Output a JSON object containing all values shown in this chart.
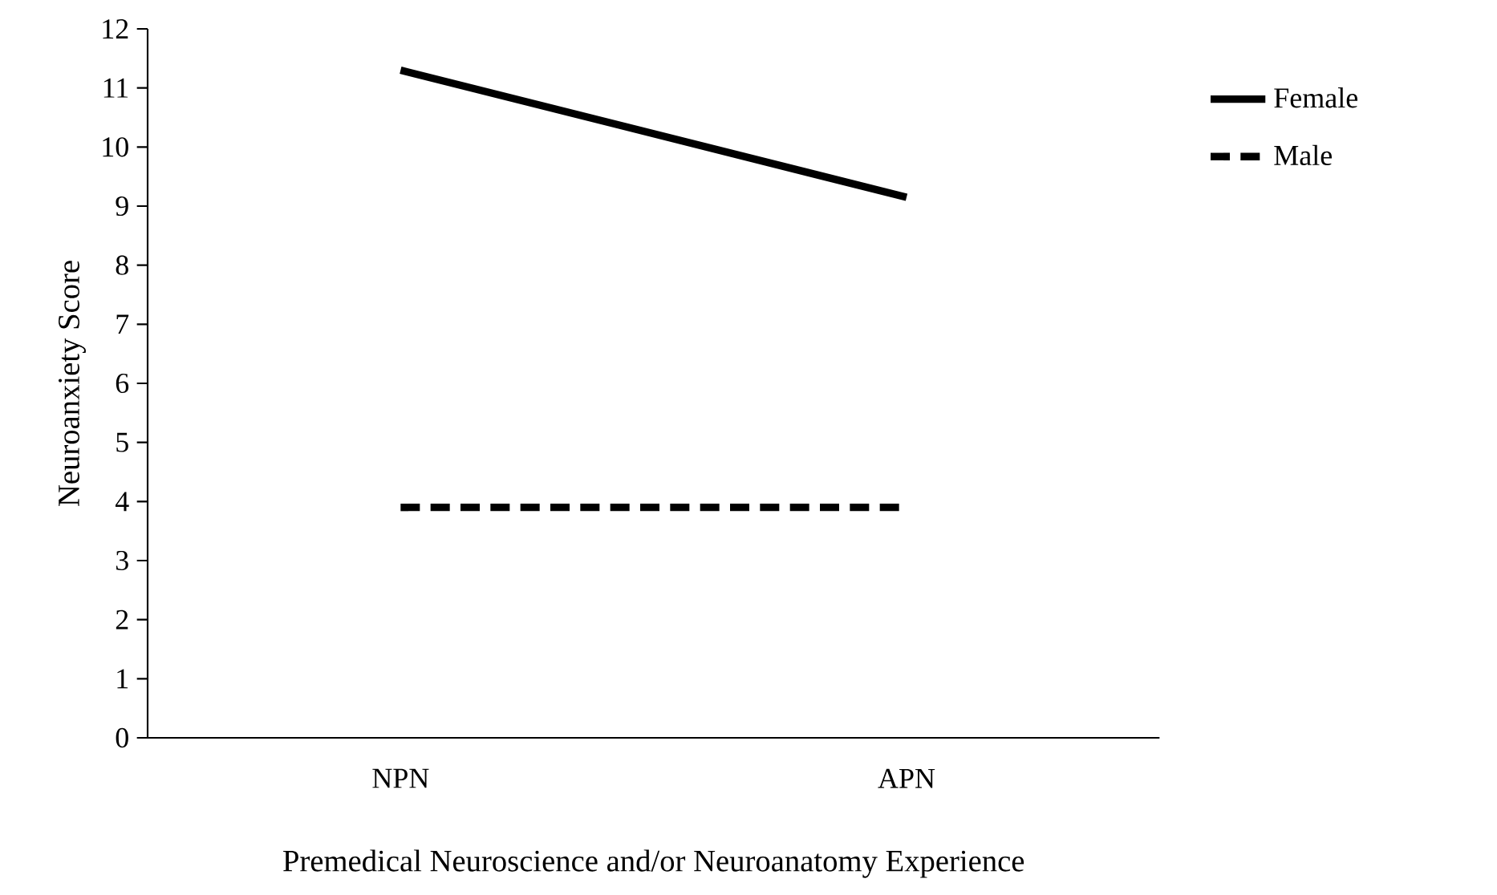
{
  "chart_data": {
    "type": "line",
    "xlabel": "Premedical Neuroscience and/or Neuroanatomy Experience",
    "ylabel": "Neuroanxiety Score",
    "categories": [
      "NPN",
      "APN"
    ],
    "series": [
      {
        "name": "Female",
        "color": "#000000",
        "values": [
          11.3,
          9.15
        ],
        "line_style": "solid"
      },
      {
        "name": "Male",
        "color": "#000000",
        "values": [
          3.9,
          3.9
        ],
        "line_style": "dashed"
      }
    ],
    "ylim": [
      0,
      12
    ],
    "yticks": [
      0,
      1,
      2,
      3,
      4,
      5,
      6,
      7,
      8,
      9,
      10,
      11,
      12
    ],
    "grid": false,
    "legend": "right",
    "marker": "none"
  }
}
